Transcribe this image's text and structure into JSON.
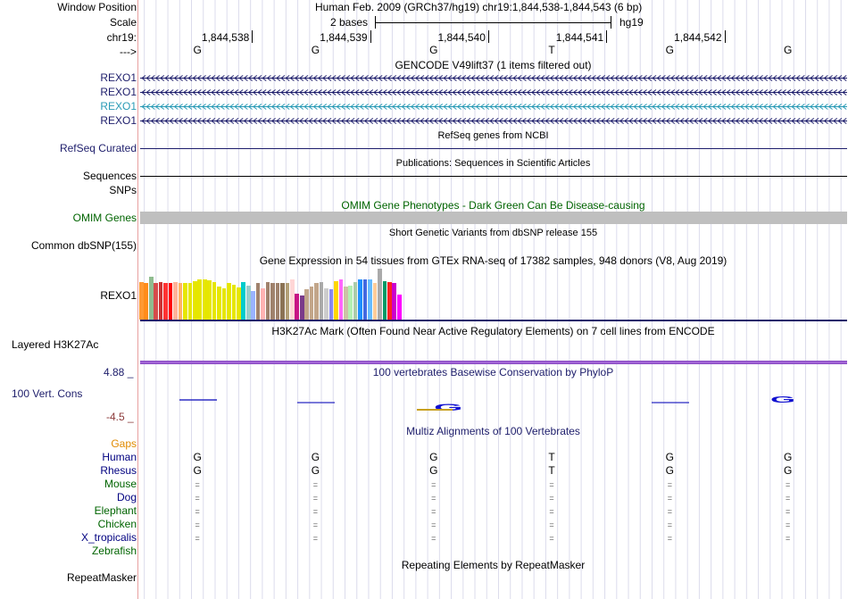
{
  "header": {
    "window_position_label": "Window Position",
    "window_position_text": "Human Feb. 2009 (GRCh37/hg19)   chr19:1,844,538-1,844,543 (6 bp)",
    "scale_label": "Scale",
    "scale_text": "2 bases",
    "assembly": "hg19",
    "chrom_label": "chr19:",
    "strand_label": "--->",
    "positions": [
      "1,844,538",
      "1,844,539",
      "1,844,540",
      "1,844,541",
      "1,844,542"
    ],
    "bases": [
      "G",
      "G",
      "G",
      "T",
      "G",
      "G"
    ]
  },
  "gencode": {
    "title": "GENCODE V49lift37 (1 items filtered out)",
    "transcripts": [
      {
        "label": "REXO1",
        "color": "#1d1d6b"
      },
      {
        "label": "REXO1",
        "color": "#1d1d6b"
      },
      {
        "label": "REXO1",
        "color": "#2a9bb6"
      },
      {
        "label": "REXO1",
        "color": "#1d1d6b"
      }
    ]
  },
  "refseq": {
    "title": "RefSeq genes from NCBI",
    "label": "RefSeq Curated"
  },
  "publications": {
    "title": "Publications: Sequences in Scientific Articles",
    "label": "Sequences"
  },
  "snps": {
    "label": "SNPs"
  },
  "omim": {
    "title": "OMIM Gene Phenotypes - Dark Green Can Be Disease-causing",
    "label": "OMIM Genes"
  },
  "dbsnp": {
    "title": "Short Genetic Variants from dbSNP release 155",
    "label": "Common dbSNP(155)"
  },
  "gtex": {
    "title": "Gene Expression in 54 tissues from GTEx RNA-seq of 17382 samples, 948 donors (V8, Aug 2019)",
    "label": "REXO1",
    "colors": [
      "#ff9933",
      "#ff8c1a",
      "#8fbc8f",
      "#d64b4b",
      "#cc3333",
      "#ff3333",
      "#ff0000",
      "#ffb399",
      "#ffb366",
      "#e6e600",
      "#e6e600",
      "#e6e600",
      "#e6e600",
      "#e6e600",
      "#e6e600",
      "#e6e600",
      "#e6e600",
      "#e6e600",
      "#e6e600",
      "#e6e600",
      "#e6e600",
      "#00cccc",
      "#99cccc",
      "#99b3ff",
      "#a0826d",
      "#ffb3b3",
      "#a0826d",
      "#a0826d",
      "#a0826d",
      "#8b7355",
      "#b3a077",
      "#ffd6d6",
      "#c71585",
      "#7a3a8a",
      "#c2a68a",
      "#c2a68a",
      "#c2a68a",
      "#aaaaaa",
      "#cccccc",
      "#8888ee",
      "#ffd700",
      "#ff66ff",
      "#ccc2a6",
      "#b3f0b3",
      "#aaccaa",
      "#1e90ff",
      "#4169e1",
      "#66bbff",
      "#ffcc99",
      "#aaaaaa",
      "#009966",
      "#ff2222",
      "#cc00cc",
      "#ff00ff"
    ],
    "values": [
      0.72,
      0.7,
      0.82,
      0.7,
      0.72,
      0.7,
      0.7,
      0.72,
      0.7,
      0.7,
      0.7,
      0.74,
      0.78,
      0.78,
      0.76,
      0.72,
      0.64,
      0.6,
      0.7,
      0.68,
      0.62,
      0.72,
      0.66,
      0.56,
      0.7,
      0.6,
      0.72,
      0.7,
      0.7,
      0.7,
      0.7,
      0.78,
      0.5,
      0.46,
      0.58,
      0.64,
      0.7,
      0.72,
      0.6,
      0.58,
      0.74,
      0.78,
      0.64,
      0.66,
      0.72,
      0.78,
      0.78,
      0.78,
      0.7,
      0.99,
      0.74,
      0.72,
      0.7,
      0.48
    ]
  },
  "h3k27ac": {
    "title": "H3K27Ac Mark (Often Found Near Active Regulatory Elements) on 7 cell lines from ENCODE",
    "label": "Layered H3K27Ac"
  },
  "conservation": {
    "title": "100 vertebrates Basewise Conservation by PhyloP",
    "label": "100 Vert. Cons",
    "ymax": "4.88 _",
    "ymin": "-4.5 _"
  },
  "multiz": {
    "title": "Multiz Alignments of 100 Vertebrates",
    "gaps_label": "Gaps",
    "species": [
      {
        "name": "Human",
        "color": "#000080",
        "row": [
          "G",
          "G",
          "G",
          "T",
          "G",
          "G"
        ]
      },
      {
        "name": "Rhesus",
        "color": "#000080",
        "row": [
          "G",
          "G",
          "G",
          "T",
          "G",
          "G"
        ]
      },
      {
        "name": "Mouse",
        "color": "#006400",
        "row": [
          "=",
          "=",
          "=",
          "=",
          "=",
          "="
        ]
      },
      {
        "name": "Dog",
        "color": "#000080",
        "row": [
          "=",
          "=",
          "=",
          "=",
          "=",
          "="
        ]
      },
      {
        "name": "Elephant",
        "color": "#006400",
        "row": [
          "=",
          "=",
          "=",
          "=",
          "=",
          "="
        ]
      },
      {
        "name": "Chicken",
        "color": "#006400",
        "row": [
          "=",
          "=",
          "=",
          "=",
          "=",
          "="
        ]
      },
      {
        "name": "X_tropicalis",
        "color": "#000080",
        "row": [
          "=",
          "=",
          "=",
          "=",
          "=",
          "="
        ]
      },
      {
        "name": "Zebrafish",
        "color": "#006400",
        "row": [
          "",
          "",
          "",
          "",
          "",
          ""
        ]
      }
    ]
  },
  "repeatmasker": {
    "title": "Repeating Elements by RepeatMasker",
    "label": "RepeatMasker"
  }
}
